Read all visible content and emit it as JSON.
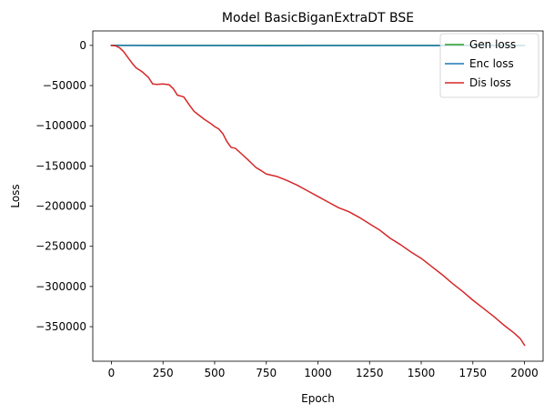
{
  "chart_data": {
    "type": "line",
    "title": "Model BasicBiganExtraDT BSE",
    "xlabel": "Epoch",
    "ylabel": "Loss",
    "xlim": [
      -90,
      2090
    ],
    "ylim": [
      -393000,
      18000
    ],
    "xticks": [
      0,
      250,
      500,
      750,
      1000,
      1250,
      1500,
      1750,
      2000
    ],
    "xtick_labels": [
      "0",
      "250",
      "500",
      "750",
      "1000",
      "1250",
      "1500",
      "1750",
      "2000"
    ],
    "yticks": [
      0,
      -50000,
      -100000,
      -150000,
      -200000,
      -250000,
      -300000,
      -350000
    ],
    "ytick_labels": [
      "0",
      "−50000",
      "−100000",
      "−150000",
      "−200000",
      "−250000",
      "−300000",
      "−350000"
    ],
    "grid": false,
    "legend": "top-right",
    "series": [
      {
        "name": "Gen loss",
        "color": "#2ca02c",
        "x": [
          0,
          2000
        ],
        "y": [
          0,
          0
        ]
      },
      {
        "name": "Enc loss",
        "color": "#1f77b4",
        "x": [
          0,
          250,
          500,
          750,
          1000,
          1250,
          1500,
          1750,
          2000
        ],
        "y": [
          0,
          -300,
          -250,
          -350,
          -200,
          -300,
          -250,
          -300,
          -300
        ]
      },
      {
        "name": "Dis loss",
        "color": "#d62728",
        "x": [
          0,
          20,
          40,
          60,
          80,
          100,
          120,
          150,
          180,
          200,
          220,
          250,
          280,
          300,
          320,
          350,
          380,
          400,
          420,
          450,
          480,
          500,
          520,
          540,
          560,
          580,
          600,
          630,
          660,
          680,
          700,
          720,
          750,
          800,
          850,
          900,
          950,
          1000,
          1050,
          1100,
          1150,
          1200,
          1250,
          1300,
          1350,
          1400,
          1450,
          1500,
          1550,
          1600,
          1650,
          1700,
          1750,
          1800,
          1850,
          1900,
          1950,
          1980,
          2000
        ],
        "y": [
          0,
          -500,
          -3000,
          -8000,
          -15000,
          -22000,
          -28000,
          -33000,
          -40000,
          -48000,
          -48500,
          -48000,
          -49000,
          -54000,
          -62000,
          -64000,
          -75000,
          -82000,
          -86000,
          -92000,
          -97000,
          -101000,
          -104000,
          -110000,
          -120000,
          -127000,
          -128000,
          -135000,
          -142000,
          -147000,
          -152000,
          -155000,
          -160000,
          -163000,
          -168000,
          -174000,
          -181000,
          -188000,
          -195000,
          -202000,
          -207000,
          -214000,
          -222000,
          -230000,
          -240000,
          -248000,
          -257000,
          -265000,
          -275000,
          -285000,
          -296000,
          -306000,
          -317000,
          -327000,
          -337000,
          -348000,
          -358000,
          -365000,
          -373000
        ]
      }
    ]
  }
}
